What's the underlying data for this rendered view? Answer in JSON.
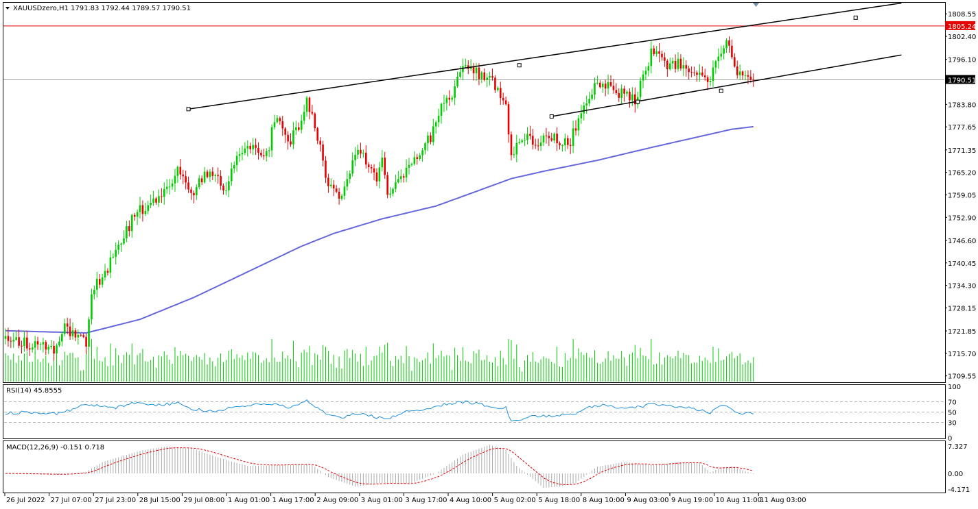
{
  "header": {
    "symbol_title": "XAUUSDzero,H1  1791.83 1792.44 1789.57 1790.51"
  },
  "colors": {
    "up": "#00cc00",
    "down": "#e60000",
    "ma": "#6666dd",
    "rsi": "#1e8fdc",
    "macd_hist": "#a9a9a9",
    "macd_signal": "#e60000",
    "resistance": "#e60000",
    "current": "#000000",
    "trend": "#000000"
  },
  "rsi_panel": {
    "label": "RSI(14) 45.8555",
    "ticks": [
      "100",
      "70",
      "50",
      "30",
      "0"
    ]
  },
  "macd_panel": {
    "label": "MACD(12,26,9) -0.151 0.718",
    "ticks": [
      "7.327",
      "0.00",
      "-4.171"
    ]
  },
  "chart_data": {
    "type": "candlestick",
    "symbol": "XAUUSDzero",
    "timeframe": "H1",
    "price_ticks": [
      "1808.55",
      "1802.40",
      "1796.10",
      "1783.80",
      "1777.65",
      "1771.35",
      "1765.20",
      "1759.05",
      "1752.90",
      "1746.60",
      "1740.45",
      "1734.30",
      "1728.15",
      "1721.85",
      "1715.70",
      "1709.55"
    ],
    "price_range": [
      1708.0,
      1811.4
    ],
    "resistance_level": "1805.24",
    "current_price": "1790.51",
    "x_labels": [
      "26 Jul 2022",
      "27 Jul 07:00",
      "27 Jul 23:00",
      "28 Jul 15:00",
      "29 Jul 08:00",
      "1 Aug 01:00",
      "1 Aug 17:00",
      "2 Aug 09:00",
      "3 Aug 01:00",
      "3 Aug 17:00",
      "4 Aug 10:00",
      "5 Aug 02:00",
      "5 Aug 18:00",
      "8 Aug 10:00",
      "9 Aug 03:00",
      "9 Aug 19:00",
      "10 Aug 11:00",
      "11 Aug 03:00"
    ],
    "close_anchors": [
      [
        0,
        1720.5
      ],
      [
        10,
        1718
      ],
      [
        18,
        1717
      ],
      [
        22,
        1722.5
      ],
      [
        26,
        1721
      ],
      [
        30,
        1719
      ],
      [
        32,
        1733
      ],
      [
        36,
        1736
      ],
      [
        40,
        1742
      ],
      [
        44,
        1748
      ],
      [
        48,
        1753.5
      ],
      [
        52,
        1756
      ],
      [
        56,
        1757
      ],
      [
        60,
        1760
      ],
      [
        64,
        1766
      ],
      [
        66,
        1764
      ],
      [
        70,
        1758
      ],
      [
        74,
        1766
      ],
      [
        78,
        1764
      ],
      [
        82,
        1760
      ],
      [
        86,
        1771
      ],
      [
        90,
        1773
      ],
      [
        94,
        1770
      ],
      [
        98,
        1772
      ],
      [
        100,
        1780
      ],
      [
        104,
        1776
      ],
      [
        106,
        1774
      ],
      [
        110,
        1779
      ],
      [
        112,
        1786
      ],
      [
        116,
        1775
      ],
      [
        120,
        1762
      ],
      [
        124,
        1758
      ],
      [
        126,
        1761
      ],
      [
        128,
        1766
      ],
      [
        130,
        1770
      ],
      [
        132,
        1771.5
      ],
      [
        136,
        1766
      ],
      [
        138,
        1764
      ],
      [
        140,
        1770
      ],
      [
        142,
        1758
      ],
      [
        146,
        1762
      ],
      [
        150,
        1766
      ],
      [
        154,
        1770
      ],
      [
        158,
        1775
      ],
      [
        162,
        1783
      ],
      [
        166,
        1787
      ],
      [
        170,
        1793
      ],
      [
        172,
        1794
      ],
      [
        176,
        1792
      ],
      [
        180,
        1791.5
      ],
      [
        184,
        1787
      ],
      [
        186,
        1784
      ],
      [
        188,
        1769
      ],
      [
        190,
        1772
      ],
      [
        194,
        1775
      ],
      [
        198,
        1773
      ],
      [
        202,
        1775
      ],
      [
        206,
        1774
      ],
      [
        210,
        1774
      ],
      [
        212,
        1778
      ],
      [
        214,
        1782
      ],
      [
        218,
        1788
      ],
      [
        222,
        1788.5
      ],
      [
        224,
        1789
      ],
      [
        226,
        1786.5
      ],
      [
        230,
        1787
      ],
      [
        234,
        1785
      ],
      [
        236,
        1789
      ],
      [
        238,
        1793
      ],
      [
        240,
        1798
      ],
      [
        242,
        1797
      ],
      [
        246,
        1794
      ],
      [
        250,
        1795
      ],
      [
        254,
        1792
      ],
      [
        256,
        1791
      ],
      [
        258,
        1793
      ],
      [
        260,
        1790
      ],
      [
        262,
        1789
      ],
      [
        264,
        1796
      ],
      [
        266,
        1799
      ],
      [
        268,
        1801
      ],
      [
        270,
        1797
      ],
      [
        272,
        1791
      ],
      [
        274,
        1791.5
      ],
      [
        276,
        1791
      ],
      [
        278,
        1790.51
      ]
    ],
    "ma_period_line": [
      [
        0,
        1721.9
      ],
      [
        30,
        1721.3
      ],
      [
        50,
        1725
      ],
      [
        70,
        1731
      ],
      [
        90,
        1738
      ],
      [
        110,
        1745
      ],
      [
        122,
        1748.5
      ],
      [
        140,
        1752.5
      ],
      [
        160,
        1756
      ],
      [
        175,
        1760
      ],
      [
        188,
        1763.5
      ],
      [
        200,
        1765.5
      ],
      [
        220,
        1768.5
      ],
      [
        240,
        1772
      ],
      [
        255,
        1774.5
      ],
      [
        270,
        1777
      ],
      [
        278,
        1777.7
      ]
    ],
    "rsi_range": [
      0,
      100
    ],
    "rsi_last": 45.8555,
    "rsi_anchors": [
      [
        0,
        48
      ],
      [
        10,
        50
      ],
      [
        18,
        46
      ],
      [
        24,
        54
      ],
      [
        30,
        66
      ],
      [
        34,
        62
      ],
      [
        40,
        58
      ],
      [
        48,
        68
      ],
      [
        56,
        64
      ],
      [
        64,
        67
      ],
      [
        70,
        55
      ],
      [
        78,
        52
      ],
      [
        86,
        60
      ],
      [
        92,
        64
      ],
      [
        100,
        66
      ],
      [
        106,
        58
      ],
      [
        110,
        68
      ],
      [
        112,
        72
      ],
      [
        118,
        50
      ],
      [
        126,
        40
      ],
      [
        130,
        48
      ],
      [
        136,
        42
      ],
      [
        142,
        36
      ],
      [
        148,
        50
      ],
      [
        156,
        56
      ],
      [
        162,
        64
      ],
      [
        170,
        70
      ],
      [
        176,
        66
      ],
      [
        182,
        60
      ],
      [
        186,
        58
      ],
      [
        188,
        32
      ],
      [
        194,
        40
      ],
      [
        202,
        42
      ],
      [
        212,
        48
      ],
      [
        216,
        58
      ],
      [
        222,
        63
      ],
      [
        230,
        57
      ],
      [
        236,
        60
      ],
      [
        240,
        66
      ],
      [
        248,
        62
      ],
      [
        256,
        56
      ],
      [
        262,
        50
      ],
      [
        266,
        60
      ],
      [
        268,
        64
      ],
      [
        272,
        48
      ],
      [
        278,
        46
      ]
    ],
    "macd_range": [
      -4.9,
      8.2
    ],
    "macd_main_last": -0.151,
    "macd_signal_last": 0.718,
    "macd_anchors": [
      [
        0,
        0
      ],
      [
        20,
        -0.3
      ],
      [
        30,
        0.4
      ],
      [
        36,
        3
      ],
      [
        50,
        6
      ],
      [
        60,
        7.2
      ],
      [
        70,
        6.5
      ],
      [
        80,
        4
      ],
      [
        90,
        2
      ],
      [
        100,
        2.2
      ],
      [
        110,
        2.5
      ],
      [
        114,
        2.3
      ],
      [
        120,
        -1
      ],
      [
        130,
        -3.5
      ],
      [
        140,
        -2.5
      ],
      [
        150,
        -2.8
      ],
      [
        160,
        0
      ],
      [
        170,
        5
      ],
      [
        180,
        7.6
      ],
      [
        186,
        6.2
      ],
      [
        190,
        2
      ],
      [
        200,
        -3.8
      ],
      [
        206,
        -3.5
      ],
      [
        212,
        -2.5
      ],
      [
        220,
        1.8
      ],
      [
        230,
        3
      ],
      [
        240,
        2.2
      ],
      [
        250,
        3
      ],
      [
        258,
        2.8
      ],
      [
        262,
        0.3
      ],
      [
        266,
        1.5
      ],
      [
        270,
        1.8
      ],
      [
        278,
        -0.151
      ]
    ],
    "trendlines": [
      {
        "name": "upper-channel",
        "start": [
          68,
          1782.5
        ],
        "end": [
          333,
          1811.5
        ]
      },
      {
        "name": "lower-channel",
        "start": [
          203,
          1780.5
        ],
        "end": [
          333,
          1797.3
        ]
      },
      {
        "name": "upper-anchor-point",
        "start": [
          191,
          1794.5
        ],
        "end": [
          191,
          1794.5
        ]
      },
      {
        "name": "upper-anchor-point-2",
        "start": [
          316,
          1807.5
        ],
        "end": [
          316,
          1807.5
        ]
      },
      {
        "name": "lower-anchor-point",
        "start": [
          235,
          1784.5
        ],
        "end": [
          235,
          1784.5
        ]
      },
      {
        "name": "lower-anchor-point-2",
        "start": [
          266,
          1787.5
        ],
        "end": [
          266,
          1787.5
        ]
      }
    ],
    "seed": 20220811
  }
}
